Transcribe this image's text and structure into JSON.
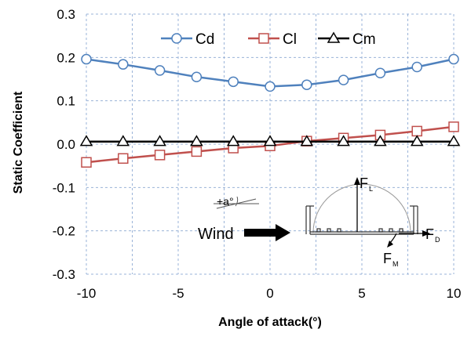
{
  "chart_data": {
    "type": "line",
    "x": [
      -10,
      -8,
      -6,
      -4,
      -2,
      0,
      2,
      4,
      6,
      8,
      10
    ],
    "series": [
      {
        "name": "Cd",
        "color": "#4f81bd",
        "marker": "circle",
        "values": [
          0.196,
          0.184,
          0.17,
          0.155,
          0.144,
          0.133,
          0.137,
          0.148,
          0.164,
          0.178,
          0.196
        ]
      },
      {
        "name": "Cl",
        "color": "#c0504d",
        "marker": "square",
        "values": [
          -0.042,
          -0.033,
          -0.025,
          -0.017,
          -0.009,
          -0.004,
          0.007,
          0.014,
          0.021,
          0.03,
          0.04
        ]
      },
      {
        "name": "Cm",
        "color": "#000000",
        "marker": "triangle",
        "values": [
          0.006,
          0.006,
          0.006,
          0.006,
          0.006,
          0.006,
          0.006,
          0.006,
          0.006,
          0.006,
          0.006
        ]
      }
    ],
    "xlabel": "Angle of attack(°)",
    "ylabel": "Static Coefficient",
    "xlim": [
      -10,
      10
    ],
    "ylim": [
      -0.3,
      0.3
    ],
    "x_ticks": [
      "-10",
      "-5",
      "0",
      "5",
      "10"
    ],
    "y_ticks": [
      "0.3",
      "0.2",
      "0.1",
      "0.0",
      "-0.1",
      "-0.2",
      "-0.3"
    ],
    "grid": "dashed",
    "legend_position": "top-center",
    "inset": {
      "wind_label": "Wind",
      "angle_label": "+a°",
      "lift_label": "F",
      "lift_sub": "L",
      "drag_label": "F",
      "drag_sub": "D",
      "moment_label": "F",
      "moment_sub": "M"
    }
  }
}
